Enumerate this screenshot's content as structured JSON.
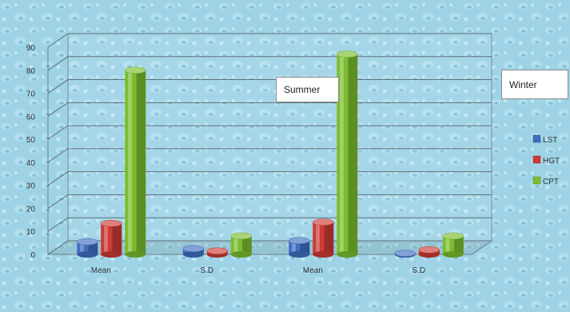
{
  "chart_data": {
    "type": "bar",
    "categories": [
      "Mean",
      "S.D",
      "Mean",
      "S.D"
    ],
    "series": [
      {
        "name": "LST",
        "color": "#3f6fc1",
        "values": [
          5.5,
          2.5,
          6,
          0.5
        ]
      },
      {
        "name": "HGT",
        "color": "#cc3b35",
        "values": [
          13.5,
          1.5,
          14,
          2
        ]
      },
      {
        "name": "CPT",
        "color": "#7cbd2e",
        "values": [
          80,
          8,
          87,
          8
        ]
      }
    ],
    "y_ticks": [
      "0",
      "10",
      "20",
      "30",
      "40",
      "50",
      "60",
      "70",
      "80",
      "90"
    ],
    "ylim": [
      0,
      90
    ],
    "annotations": [
      "Summer",
      "Winter"
    ],
    "legend_position": "right",
    "grid": true,
    "background_color": "#9ed3e6"
  }
}
